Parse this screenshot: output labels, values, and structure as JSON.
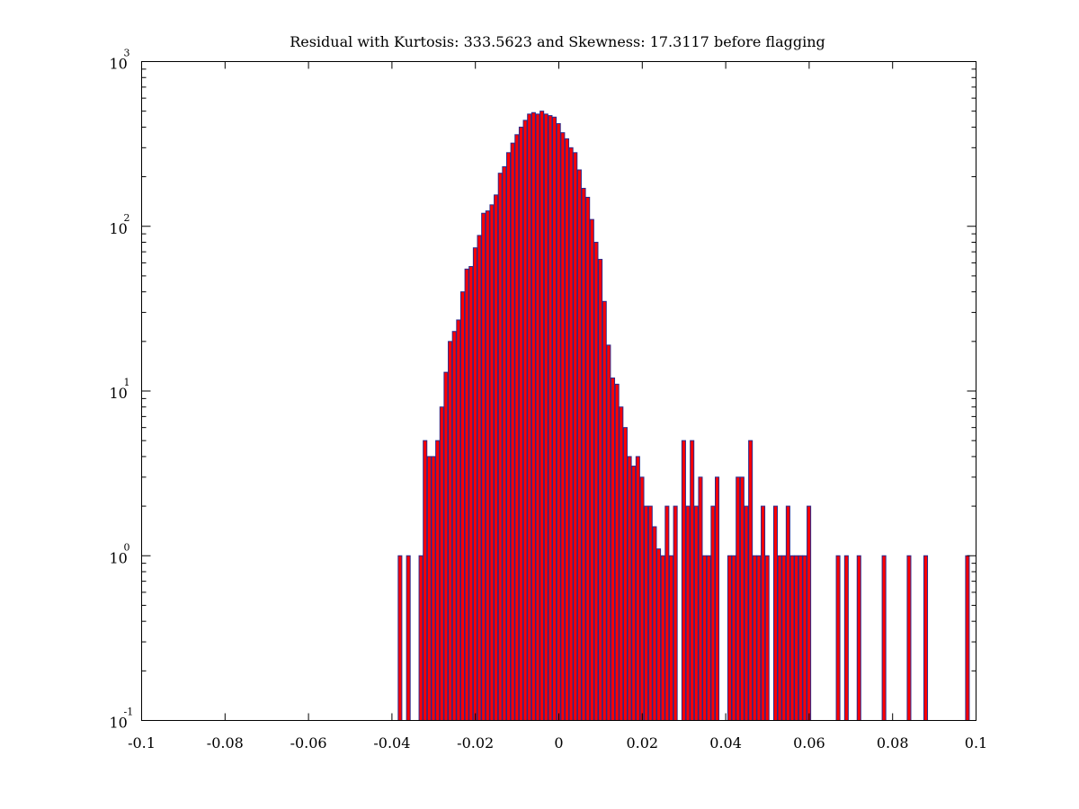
{
  "chart_data": {
    "type": "bar",
    "title": "Residual with Kurtosis: 333.5623 and Skewness: 17.3117 before flagging",
    "xlabel": "",
    "ylabel": "",
    "xlim": [
      -0.1,
      0.1
    ],
    "ylim": [
      0.1,
      1000
    ],
    "yscale": "log",
    "grid": false,
    "bar_color": "#ff0000",
    "edge_color": "#2a2a8c",
    "bin_width": 0.001,
    "x_ticks": [
      "-0.1",
      "-0.08",
      "-0.06",
      "-0.04",
      "-0.02",
      "0",
      "0.02",
      "0.04",
      "0.06",
      "0.08",
      "0.1"
    ],
    "x_tick_values": [
      -0.1,
      -0.08,
      -0.06,
      -0.04,
      -0.02,
      0,
      0.02,
      0.04,
      0.06,
      0.08,
      0.1
    ],
    "y_ticks": [
      {
        "value": 0.1,
        "base": "10",
        "exp": "-1"
      },
      {
        "value": 1,
        "base": "10",
        "exp": "0"
      },
      {
        "value": 10,
        "base": "10",
        "exp": "1"
      },
      {
        "value": 100,
        "base": "10",
        "exp": "2"
      },
      {
        "value": 1000,
        "base": "10",
        "exp": "3"
      }
    ],
    "x": [
      -0.038,
      -0.036,
      -0.033,
      -0.032,
      -0.031,
      -0.03,
      -0.029,
      -0.028,
      -0.027,
      -0.026,
      -0.025,
      -0.024,
      -0.023,
      -0.022,
      -0.021,
      -0.02,
      -0.019,
      -0.018,
      -0.017,
      -0.016,
      -0.015,
      -0.014,
      -0.013,
      -0.012,
      -0.011,
      -0.01,
      -0.009,
      -0.008,
      -0.007,
      -0.006,
      -0.005,
      -0.004,
      -0.003,
      -0.002,
      -0.001,
      0.0,
      0.001,
      0.002,
      0.003,
      0.004,
      0.005,
      0.006,
      0.007,
      0.008,
      0.009,
      0.01,
      0.011,
      0.012,
      0.013,
      0.014,
      0.015,
      0.016,
      0.017,
      0.018,
      0.019,
      0.02,
      0.021,
      0.022,
      0.023,
      0.024,
      0.025,
      0.026,
      0.027,
      0.028,
      0.03,
      0.031,
      0.032,
      0.033,
      0.034,
      0.035,
      0.036,
      0.037,
      0.038,
      0.041,
      0.042,
      0.043,
      0.044,
      0.045,
      0.046,
      0.047,
      0.048,
      0.049,
      0.05,
      0.052,
      0.053,
      0.054,
      0.055,
      0.056,
      0.057,
      0.058,
      0.059,
      0.06,
      0.067,
      0.069,
      0.072,
      0.078,
      0.084,
      0.088,
      0.098
    ],
    "values": [
      1,
      1,
      1,
      5,
      4,
      4,
      5,
      8,
      13,
      20,
      23,
      27,
      40,
      55,
      57,
      74,
      88,
      120,
      124,
      135,
      155,
      210,
      230,
      280,
      320,
      360,
      400,
      440,
      480,
      490,
      480,
      500,
      480,
      470,
      460,
      420,
      370,
      340,
      300,
      280,
      220,
      170,
      150,
      110,
      80,
      63,
      35,
      19,
      12,
      11,
      8,
      6,
      4,
      3.5,
      4,
      3,
      2,
      2,
      1.5,
      1.1,
      1,
      2,
      1,
      2,
      5,
      2,
      5,
      2,
      3,
      1,
      1,
      2,
      3,
      1,
      1,
      3,
      3,
      2,
      5,
      1,
      1,
      2,
      1,
      2,
      1,
      1,
      2,
      1,
      1,
      1,
      1,
      2,
      1,
      1,
      1,
      1,
      1,
      1,
      1
    ]
  }
}
